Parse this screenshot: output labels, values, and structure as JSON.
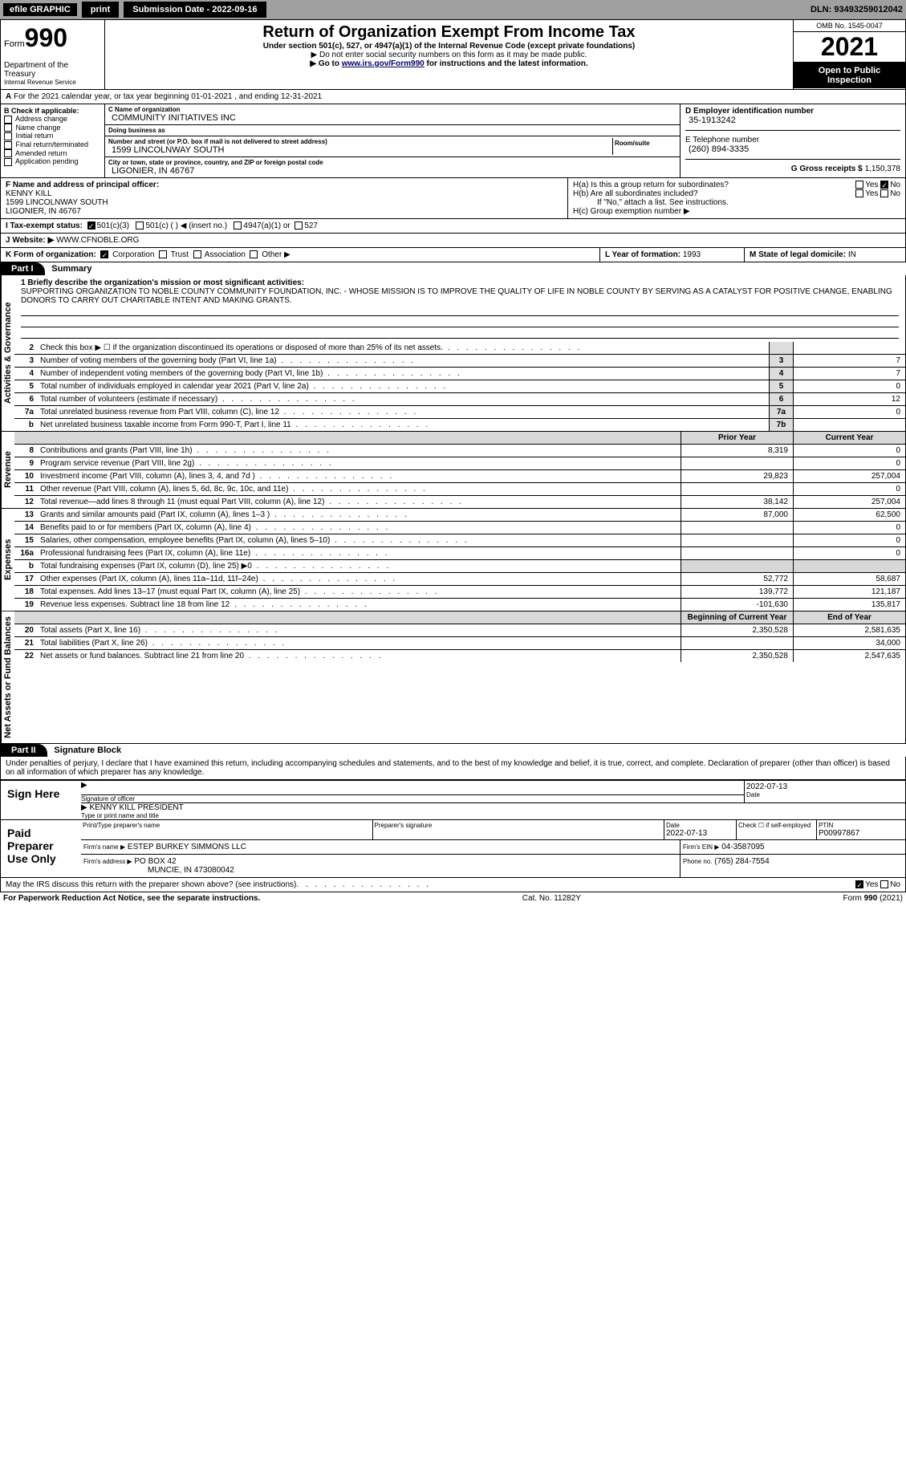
{
  "topbar": {
    "efile": "efile GRAPHIC",
    "print": "print",
    "sub_label": "Submission Date - 2022-09-16",
    "dln": "DLN: 93493259012042"
  },
  "header": {
    "form_word": "Form",
    "form_num": "990",
    "title": "Return of Organization Exempt From Income Tax",
    "sub1": "Under section 501(c), 527, or 4947(a)(1) of the Internal Revenue Code (except private foundations)",
    "sub2": "▶ Do not enter social security numbers on this form as it may be made public.",
    "sub3": "▶ Go to ",
    "link": "www.irs.gov/Form990",
    "sub3b": " for instructions and the latest information.",
    "dept": "Department of the Treasury",
    "irs": "Internal Revenue Service",
    "omb": "OMB No. 1545-0047",
    "year": "2021",
    "open": "Open to Public Inspection"
  },
  "row_a": {
    "label": "A",
    "text": "For the 2021 calendar year, or tax year beginning 01-01-2021    , and ending 12-31-2021"
  },
  "col_b": {
    "label": "B Check if applicable:",
    "items": [
      "Address change",
      "Name change",
      "Initial return",
      "Final return/terminated",
      "Amended return",
      "Application pending"
    ]
  },
  "col_c": {
    "name_label": "C Name of organization",
    "name": "COMMUNITY INITIATIVES INC",
    "dba_label": "Doing business as",
    "dba": "",
    "addr_label": "Number and street (or P.O. box if mail is not delivered to street address)",
    "room_label": "Room/suite",
    "addr": "1599 LINCOLNWAY SOUTH",
    "city_label": "City or town, state or province, country, and ZIP or foreign postal code",
    "city": "LIGONIER, IN  46767"
  },
  "col_d": {
    "ein_label": "D Employer identification number",
    "ein": "35-1913242",
    "tel_label": "E Telephone number",
    "tel": "(260) 894-3335",
    "gross_label": "G Gross receipts $",
    "gross": "1,150,378"
  },
  "row_f": {
    "label": "F  Name and address of principal officer:",
    "name": "KENNY KILL",
    "addr1": "1599 LINCOLNWAY SOUTH",
    "addr2": "LIGONIER, IN  46767"
  },
  "row_h": {
    "ha": "H(a)  Is this a group return for subordinates?",
    "hb": "H(b)  Are all subordinates included?",
    "hb2": "If \"No,\" attach a list. See instructions.",
    "hc": "H(c)  Group exemption number ▶",
    "yes": "Yes",
    "no": "No"
  },
  "row_i": {
    "label": "I   Tax-exempt status:",
    "c1": "501(c)(3)",
    "c2": "501(c) (  ) ◀ (insert no.)",
    "c3": "4947(a)(1) or",
    "c4": "527"
  },
  "row_j": {
    "label": "J   Website: ▶",
    "val": "WWW.CFNOBLE.ORG"
  },
  "row_k": {
    "label": "K Form of organization:",
    "c1": "Corporation",
    "c2": "Trust",
    "c3": "Association",
    "c4": "Other ▶"
  },
  "row_l": {
    "label": "L Year of formation:",
    "val": "1993"
  },
  "row_m": {
    "label": "M State of legal domicile:",
    "val": "IN"
  },
  "part1": {
    "hdr": "Part I",
    "title": "Summary"
  },
  "mission": {
    "label": "1  Briefly describe the organization's mission or most significant activities:",
    "text": "SUPPORTING ORGANIZATION TO NOBLE COUNTY COMMUNITY FOUNDATION, INC. - WHOSE MISSION IS TO IMPROVE THE QUALITY OF LIFE IN NOBLE COUNTY BY SERVING AS A CATALYST FOR POSITIVE CHANGE, ENABLING DONORS TO CARRY OUT CHARITABLE INTENT AND MAKING GRANTS."
  },
  "side_labels": {
    "ag": "Activities & Governance",
    "rev": "Revenue",
    "exp": "Expenses",
    "na": "Net Assets or Fund Balances"
  },
  "lines_ag": [
    {
      "n": "2",
      "d": "Check this box ▶ ☐  if the organization discontinued its operations or disposed of more than 25% of its net assets.",
      "box": "",
      "v": ""
    },
    {
      "n": "3",
      "d": "Number of voting members of the governing body (Part VI, line 1a)",
      "box": "3",
      "v": "7"
    },
    {
      "n": "4",
      "d": "Number of independent voting members of the governing body (Part VI, line 1b)",
      "box": "4",
      "v": "7"
    },
    {
      "n": "5",
      "d": "Total number of individuals employed in calendar year 2021 (Part V, line 2a)",
      "box": "5",
      "v": "0"
    },
    {
      "n": "6",
      "d": "Total number of volunteers (estimate if necessary)",
      "box": "6",
      "v": "12"
    },
    {
      "n": "7a",
      "d": "Total unrelated business revenue from Part VIII, column (C), line 12",
      "box": "7a",
      "v": "0"
    },
    {
      "n": "b",
      "d": "Net unrelated business taxable income from Form 990-T, Part I, line 11",
      "box": "7b",
      "v": ""
    }
  ],
  "col_hdr": {
    "prior": "Prior Year",
    "curr": "Current Year",
    "beg": "Beginning of Current Year",
    "end": "End of Year"
  },
  "lines_rev": [
    {
      "n": "8",
      "d": "Contributions and grants (Part VIII, line 1h)",
      "p": "8,319",
      "c": "0"
    },
    {
      "n": "9",
      "d": "Program service revenue (Part VIII, line 2g)",
      "p": "",
      "c": "0"
    },
    {
      "n": "10",
      "d": "Investment income (Part VIII, column (A), lines 3, 4, and 7d )",
      "p": "29,823",
      "c": "257,004"
    },
    {
      "n": "11",
      "d": "Other revenue (Part VIII, column (A), lines 5, 6d, 8c, 9c, 10c, and 11e)",
      "p": "",
      "c": "0"
    },
    {
      "n": "12",
      "d": "Total revenue—add lines 8 through 11 (must equal Part VIII, column (A), line 12)",
      "p": "38,142",
      "c": "257,004"
    }
  ],
  "lines_exp": [
    {
      "n": "13",
      "d": "Grants and similar amounts paid (Part IX, column (A), lines 1–3 )",
      "p": "87,000",
      "c": "62,500"
    },
    {
      "n": "14",
      "d": "Benefits paid to or for members (Part IX, column (A), line 4)",
      "p": "",
      "c": "0"
    },
    {
      "n": "15",
      "d": "Salaries, other compensation, employee benefits (Part IX, column (A), lines 5–10)",
      "p": "",
      "c": "0"
    },
    {
      "n": "16a",
      "d": "Professional fundraising fees (Part IX, column (A), line 11e)",
      "p": "",
      "c": "0"
    },
    {
      "n": "b",
      "d": "Total fundraising expenses (Part IX, column (D), line 25) ▶0",
      "p": "",
      "c": ""
    },
    {
      "n": "17",
      "d": "Other expenses (Part IX, column (A), lines 11a–11d, 11f–24e)",
      "p": "52,772",
      "c": "58,687"
    },
    {
      "n": "18",
      "d": "Total expenses. Add lines 13–17 (must equal Part IX, column (A), line 25)",
      "p": "139,772",
      "c": "121,187"
    },
    {
      "n": "19",
      "d": "Revenue less expenses. Subtract line 18 from line 12",
      "p": "-101,630",
      "c": "135,817"
    }
  ],
  "lines_na": [
    {
      "n": "20",
      "d": "Total assets (Part X, line 16)",
      "p": "2,350,528",
      "c": "2,581,635"
    },
    {
      "n": "21",
      "d": "Total liabilities (Part X, line 26)",
      "p": "",
      "c": "34,000"
    },
    {
      "n": "22",
      "d": "Net assets or fund balances. Subtract line 21 from line 20",
      "p": "2,350,528",
      "c": "2,547,635"
    }
  ],
  "part2": {
    "hdr": "Part II",
    "title": "Signature Block"
  },
  "sig_decl": "Under penalties of perjury, I declare that I have examined this return, including accompanying schedules and statements, and to the best of my knowledge and belief, it is true, correct, and complete. Declaration of preparer (other than officer) is based on all information of which preparer has any knowledge.",
  "sign": {
    "here": "Sign Here",
    "sig_label": "Signature of officer",
    "date_label": "Date",
    "date": "2022-07-13",
    "name": "KENNY KILL  PRESIDENT",
    "name_label": "Type or print name and title"
  },
  "paid": {
    "title": "Paid Preparer Use Only",
    "pname_label": "Print/Type preparer's name",
    "psig_label": "Preparer's signature",
    "pdate_label": "Date",
    "pdate": "2022-07-13",
    "chk_label": "Check ☐ if self-employed",
    "ptin_label": "PTIN",
    "ptin": "P00997867",
    "firm_label": "Firm's name    ▶",
    "firm": "ESTEP BURKEY SIMMONS LLC",
    "ein_label": "Firm's EIN ▶",
    "ein": "04-3587095",
    "addr_label": "Firm's address ▶",
    "addr1": "PO BOX 42",
    "addr2": "MUNCIE, IN  473080042",
    "phone_label": "Phone no.",
    "phone": "(765) 284-7554"
  },
  "may_discuss": "May the IRS discuss this return with the preparer shown above? (see instructions)",
  "footer": {
    "left": "For Paperwork Reduction Act Notice, see the separate instructions.",
    "mid": "Cat. No. 11282Y",
    "right": "Form 990 (2021)"
  },
  "colors": {
    "topbar_bg": "#9fa09f",
    "black": "#000000"
  }
}
